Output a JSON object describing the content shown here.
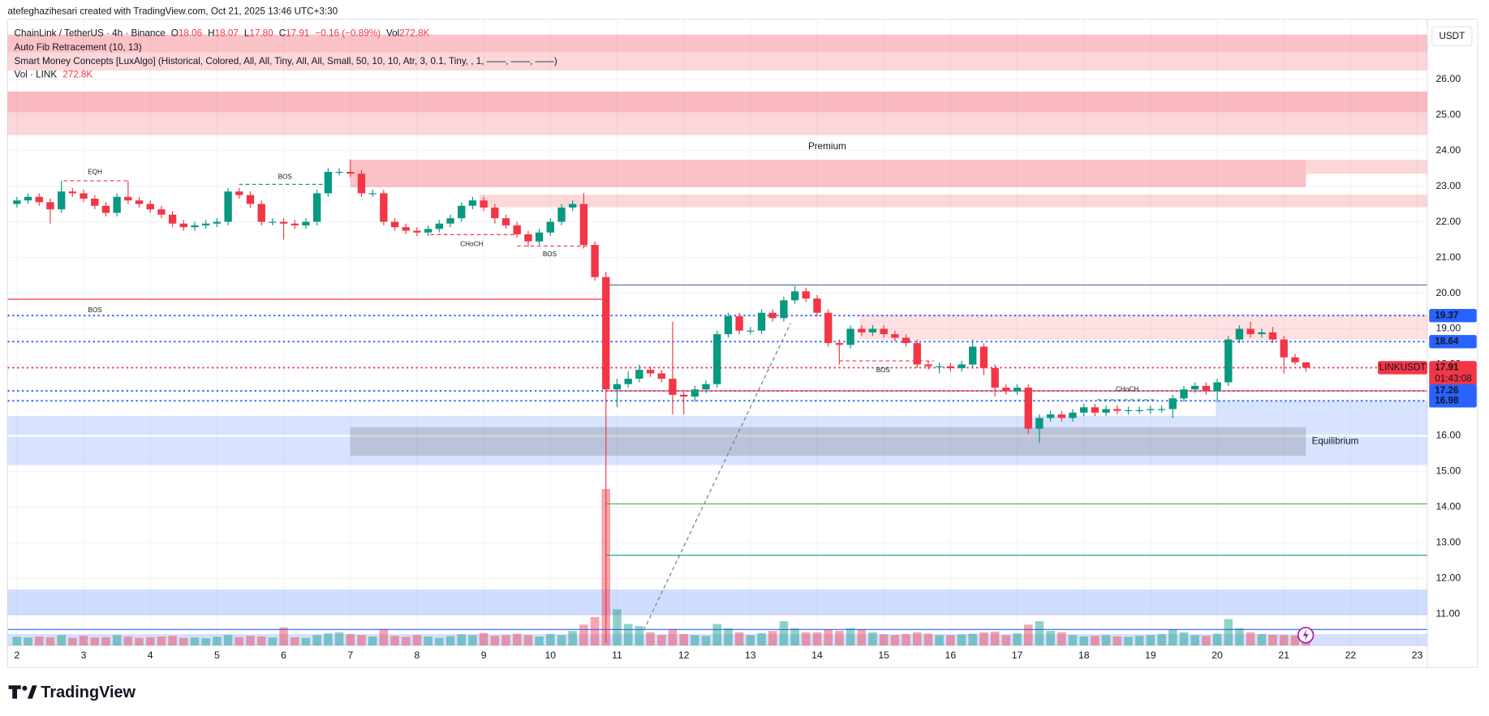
{
  "credit": "atefeghazihesari created with TradingView.com, Oct 21, 2025 13:46 UTC+3:30",
  "brand": "TradingView",
  "chart_data": {
    "type": "candlestick",
    "symbol": "ChainLink / TetherUS · 4h · Binance",
    "legend": [
      {
        "key": "O",
        "value": "18.06"
      },
      {
        "key": "H",
        "value": "18.07"
      },
      {
        "key": "L",
        "value": "17.80"
      },
      {
        "key": "C",
        "value": "17.91"
      },
      {
        "value": "−0.16 (−0.89%)"
      },
      {
        "key": "Vol",
        "value": "272.8K"
      }
    ],
    "indicators": [
      "Auto Fib Retracement (10, 13)",
      "Smart Money Concepts [LuxAlgo] (Historical, Colored, All, All, Tiny, All, All, Small, 50, 10, 10, Atr, 3, 0.1, Tiny, , 1, ——, ——, ——)"
    ],
    "volume_legend": {
      "name": "Vol · LINK",
      "value": "272.8K"
    },
    "currency": "USDT",
    "up_color": "#089981",
    "down_color": "#f23645",
    "x": [
      2,
      2.167,
      2.333,
      2.5,
      2.667,
      2.833,
      3,
      3.167,
      3.333,
      3.5,
      3.667,
      3.833,
      4,
      4.167,
      4.333,
      4.5,
      4.667,
      4.833,
      5,
      5.167,
      5.333,
      5.5,
      5.667,
      5.833,
      6,
      6.167,
      6.333,
      6.5,
      6.667,
      6.833,
      7,
      7.167,
      7.333,
      7.5,
      7.667,
      7.833,
      8,
      8.167,
      8.333,
      8.5,
      8.667,
      8.833,
      9,
      9.167,
      9.333,
      9.5,
      9.667,
      9.833,
      10,
      10.167,
      10.333,
      10.5,
      10.667,
      10.833,
      11,
      11.167,
      11.333,
      11.5,
      11.667,
      11.833,
      12,
      12.167,
      12.333,
      12.5,
      12.667,
      12.833,
      13,
      13.167,
      13.333,
      13.5,
      13.667,
      13.833,
      14,
      14.167,
      14.333,
      14.5,
      14.667,
      14.833,
      15,
      15.167,
      15.333,
      15.5,
      15.667,
      15.833,
      16,
      16.167,
      16.333,
      16.5,
      16.667,
      16.833,
      17,
      17.167,
      17.333,
      17.5,
      17.667,
      17.833,
      18,
      18.167,
      18.333,
      18.5,
      18.667,
      18.833,
      19,
      19.167,
      19.333,
      19.5,
      19.667,
      19.833,
      20,
      20.167,
      20.333,
      20.5,
      20.667,
      20.833,
      21,
      21.167,
      21.333
    ],
    "open": [
      22.5,
      22.6,
      22.7,
      22.55,
      22.35,
      22.85,
      22.8,
      22.65,
      22.45,
      22.25,
      22.7,
      22.6,
      22.5,
      22.35,
      22.2,
      21.95,
      21.85,
      21.9,
      21.95,
      22.0,
      22.85,
      22.75,
      22.5,
      22.0,
      22.0,
      21.95,
      21.9,
      22.0,
      22.8,
      23.4,
      23.4,
      23.35,
      22.8,
      22.8,
      22.0,
      21.85,
      21.75,
      21.7,
      21.8,
      21.95,
      22.1,
      22.45,
      22.6,
      22.4,
      22.1,
      21.9,
      21.65,
      21.45,
      21.7,
      22.0,
      22.4,
      22.5,
      21.35,
      20.45,
      17.3,
      17.45,
      17.6,
      17.85,
      17.75,
      17.6,
      17.15,
      17.1,
      17.3,
      17.45,
      18.85,
      19.35,
      18.95,
      18.95,
      19.45,
      19.3,
      19.8,
      20.05,
      19.85,
      19.45,
      18.6,
      18.55,
      19.0,
      18.9,
      19.0,
      18.85,
      18.75,
      18.6,
      18.0,
      17.95,
      17.95,
      17.9,
      18.0,
      18.5,
      17.9,
      17.35,
      17.25,
      17.35,
      16.2,
      16.5,
      16.6,
      16.5,
      16.65,
      16.8,
      16.65,
      16.75,
      16.7,
      16.72,
      16.72,
      16.75,
      16.75,
      17.05,
      17.3,
      17.4,
      17.25,
      17.5,
      18.7,
      19.0,
      18.85,
      18.9,
      18.7,
      18.2,
      18.06
    ],
    "high": [
      22.7,
      22.8,
      22.8,
      22.65,
      23.15,
      22.95,
      22.9,
      22.75,
      22.55,
      22.8,
      23.15,
      22.7,
      22.6,
      22.45,
      22.3,
      22.05,
      22.0,
      22.05,
      22.1,
      22.95,
      22.95,
      22.85,
      22.6,
      22.1,
      22.1,
      22.05,
      22.1,
      22.9,
      23.5,
      23.5,
      23.75,
      23.45,
      22.9,
      22.9,
      22.1,
      21.95,
      21.85,
      21.9,
      22.05,
      22.2,
      22.55,
      22.7,
      22.7,
      22.5,
      22.2,
      22.0,
      21.75,
      21.8,
      22.1,
      22.5,
      22.6,
      22.8,
      21.45,
      20.6,
      17.6,
      17.8,
      18.0,
      17.95,
      17.85,
      19.2,
      17.25,
      17.4,
      17.55,
      18.95,
      19.45,
      19.45,
      19.05,
      19.55,
      19.55,
      19.9,
      20.2,
      20.15,
      19.95,
      19.55,
      18.7,
      19.1,
      19.1,
      19.1,
      19.1,
      18.95,
      18.85,
      18.7,
      18.1,
      18.05,
      18.05,
      18.1,
      18.7,
      18.6,
      18.0,
      17.45,
      17.45,
      17.45,
      16.6,
      16.7,
      16.7,
      16.75,
      16.9,
      16.9,
      16.85,
      16.85,
      16.82,
      16.82,
      16.85,
      16.85,
      17.15,
      17.4,
      17.5,
      17.5,
      17.6,
      18.8,
      19.1,
      19.2,
      19.0,
      19.05,
      18.8,
      18.3,
      18.07
    ],
    "low": [
      22.4,
      22.5,
      22.45,
      21.95,
      22.25,
      22.7,
      22.55,
      22.35,
      22.15,
      22.15,
      22.5,
      22.4,
      22.25,
      22.1,
      21.85,
      21.75,
      21.75,
      21.8,
      21.85,
      21.9,
      22.65,
      22.4,
      21.9,
      21.9,
      21.5,
      21.8,
      21.8,
      21.9,
      22.7,
      23.3,
      23.25,
      22.7,
      22.7,
      21.9,
      21.75,
      21.65,
      21.6,
      21.6,
      21.7,
      21.85,
      22.0,
      22.35,
      22.3,
      21.95,
      21.8,
      21.55,
      21.3,
      21.35,
      21.6,
      21.9,
      22.3,
      21.25,
      20.35,
      10.2,
      16.8,
      17.35,
      17.5,
      17.65,
      17.5,
      16.6,
      16.6,
      16.95,
      17.2,
      17.35,
      18.75,
      18.85,
      18.85,
      18.85,
      19.2,
      19.2,
      19.7,
      19.75,
      19.35,
      18.5,
      18.0,
      18.45,
      18.8,
      18.8,
      18.75,
      18.65,
      18.5,
      17.9,
      17.85,
      17.75,
      17.8,
      17.8,
      17.9,
      17.7,
      17.1,
      17.15,
      17.15,
      16.05,
      15.8,
      16.4,
      16.4,
      16.4,
      16.55,
      16.55,
      16.55,
      16.6,
      16.6,
      16.62,
      16.62,
      16.65,
      16.5,
      16.95,
      17.2,
      17.15,
      16.95,
      17.4,
      18.6,
      18.75,
      18.75,
      18.6,
      17.75,
      18.0,
      17.8
    ],
    "close": [
      22.6,
      22.7,
      22.55,
      22.35,
      22.85,
      22.8,
      22.65,
      22.45,
      22.25,
      22.7,
      22.6,
      22.5,
      22.35,
      22.2,
      21.95,
      21.85,
      21.9,
      21.95,
      22.0,
      22.85,
      22.75,
      22.5,
      22.0,
      22.0,
      21.95,
      21.9,
      22.0,
      22.8,
      23.4,
      23.4,
      23.35,
      22.8,
      22.8,
      22.0,
      21.85,
      21.75,
      21.7,
      21.8,
      21.95,
      22.1,
      22.45,
      22.6,
      22.4,
      22.1,
      21.9,
      21.65,
      21.45,
      21.7,
      22.0,
      22.4,
      22.5,
      21.35,
      20.45,
      17.3,
      17.45,
      17.6,
      17.85,
      17.75,
      17.6,
      17.15,
      17.1,
      17.3,
      17.45,
      18.85,
      19.35,
      18.95,
      18.95,
      19.45,
      19.3,
      19.8,
      20.05,
      19.85,
      19.45,
      18.6,
      18.55,
      19.0,
      18.9,
      19.0,
      18.85,
      18.75,
      18.6,
      18.0,
      17.95,
      17.95,
      17.9,
      18.0,
      18.5,
      17.9,
      17.35,
      17.25,
      17.35,
      16.2,
      16.5,
      16.6,
      16.5,
      16.65,
      16.8,
      16.65,
      16.75,
      16.7,
      16.72,
      16.72,
      16.75,
      16.75,
      17.05,
      17.3,
      17.4,
      17.25,
      17.5,
      18.7,
      19.0,
      18.85,
      18.9,
      18.7,
      18.2,
      18.06,
      17.91
    ],
    "volume": [
      250,
      230,
      260,
      240,
      300,
      220,
      280,
      230,
      240,
      300,
      260,
      220,
      240,
      260,
      280,
      220,
      230,
      210,
      250,
      310,
      240,
      280,
      260,
      230,
      520,
      240,
      220,
      300,
      350,
      380,
      330,
      300,
      260,
      480,
      280,
      250,
      300,
      260,
      220,
      270,
      320,
      300,
      360,
      280,
      300,
      340,
      300,
      260,
      330,
      300,
      420,
      600,
      820,
      4500,
      1040,
      620,
      560,
      380,
      300,
      480,
      330,
      300,
      280,
      620,
      500,
      380,
      300,
      360,
      420,
      700,
      500,
      380,
      380,
      460,
      420,
      500,
      460,
      380,
      320,
      300,
      330,
      380,
      340,
      300,
      300,
      320,
      340,
      380,
      400,
      300,
      350,
      600,
      700,
      420,
      380,
      300,
      260,
      280,
      300,
      260,
      250,
      280,
      300,
      330,
      460,
      380,
      300,
      280,
      340,
      760,
      500,
      380,
      330,
      310,
      300,
      290,
      272.8
    ],
    "xlim": [
      1.86,
      23.15
    ],
    "ylim": [
      10.12,
      27.68
    ],
    "xticks": [
      2,
      3,
      4,
      5,
      6,
      7,
      8,
      9,
      10,
      11,
      12,
      13,
      14,
      15,
      16,
      17,
      18,
      19,
      20,
      21,
      22,
      23
    ],
    "yticks": [
      {
        "value": 11,
        "label": "11.00"
      },
      {
        "value": 12,
        "label": "12.00"
      },
      {
        "value": 13,
        "label": "13.00"
      },
      {
        "value": 14,
        "label": "14.00"
      },
      {
        "value": 15,
        "label": "15.00"
      },
      {
        "value": 16,
        "label": "16.00"
      },
      {
        "value": 17,
        "label": "17.00"
      },
      {
        "value": 18,
        "label": "18.00"
      },
      {
        "value": 19,
        "label": "19.00"
      },
      {
        "value": 20,
        "label": "20.00"
      },
      {
        "value": 21,
        "label": "21.00"
      },
      {
        "value": 22,
        "label": "22.00"
      },
      {
        "value": 23,
        "label": "23.00"
      },
      {
        "value": 24,
        "label": "24.00"
      },
      {
        "value": 25,
        "label": "25.00"
      },
      {
        "value": 26,
        "label": "26.00"
      }
    ],
    "grid": true,
    "zones": [
      {
        "from": 1.86,
        "to": 23.15,
        "low": 26.75,
        "high": 27.25,
        "color": "rgba(242,54,69,0.3)"
      },
      {
        "from": 1.86,
        "to": 23.15,
        "low": 26.24,
        "high": 26.75,
        "color": "rgba(242,54,69,0.2)"
      },
      {
        "from": 1.86,
        "to": 23.15,
        "low": 25.07,
        "high": 25.65,
        "color": "rgba(242,54,69,0.35)"
      },
      {
        "from": 1.86,
        "to": 23.15,
        "low": 24.43,
        "high": 25.07,
        "color": "rgba(242,54,69,0.2)"
      },
      {
        "from": 7.0,
        "to": 21.33,
        "low": 22.97,
        "high": 23.74,
        "color": "rgba(242,54,69,0.3)"
      },
      {
        "from": 21.33,
        "to": 23.15,
        "low": 23.35,
        "high": 23.74,
        "color": "rgba(242,54,69,0.2)"
      },
      {
        "from": 8.94,
        "to": 23.15,
        "low": 22.41,
        "high": 22.76,
        "color": "rgba(242,54,69,0.2)"
      },
      {
        "from": 14.64,
        "to": 23.15,
        "low": 18.69,
        "high": 19.4,
        "color": "rgba(242,54,69,0.15)"
      },
      {
        "from": 1.86,
        "to": 23.15,
        "low": 16.03,
        "high": 16.56,
        "color": "rgba(41,98,255,0.18)"
      },
      {
        "from": 1.86,
        "to": 23.15,
        "low": 15.18,
        "high": 15.97,
        "color": "rgba(41,98,255,0.18)"
      },
      {
        "from": 7.0,
        "to": 21.33,
        "low": 15.44,
        "high": 16.24,
        "color": "rgba(120,123,134,0.3)"
      },
      {
        "from": 19.98,
        "to": 23.15,
        "low": 16.56,
        "high": 16.98,
        "color": "rgba(41,98,255,0.18)"
      },
      {
        "from": 1.86,
        "to": 23.15,
        "low": 10.97,
        "high": 11.69,
        "color": "rgba(41,98,255,0.22)"
      },
      {
        "from": 1.86,
        "to": 23.15,
        "low": 10.12,
        "high": 10.44,
        "color": "rgba(41,98,255,0.2)"
      }
    ],
    "lines": [
      {
        "price": 20.23,
        "from": 10.83,
        "to": 23.15,
        "color": "#5d6a9a",
        "style": "solid"
      },
      {
        "price": 19.83,
        "from": 1.86,
        "to": 10.83,
        "color": "#f23645",
        "style": "solid"
      },
      {
        "price": 19.37,
        "from": 1.86,
        "to": 23.15,
        "color": "#2962ff",
        "style": "dotted"
      },
      {
        "price": 18.64,
        "from": 1.86,
        "to": 23.15,
        "color": "#2962ff",
        "style": "dotted"
      },
      {
        "price": 17.91,
        "from": 1.86,
        "to": 23.15,
        "color": "#f23645",
        "style": "dotted"
      },
      {
        "price": 17.26,
        "from": 1.86,
        "to": 23.15,
        "color": "#2962ff",
        "style": "dotted"
      },
      {
        "price": 16.98,
        "from": 1.86,
        "to": 23.15,
        "color": "#2962ff",
        "style": "dotted"
      },
      {
        "price": 17.26,
        "from": 10.83,
        "to": 23.15,
        "color": "#f23645",
        "style": "solid"
      },
      {
        "price": 14.09,
        "from": 10.83,
        "to": 23.15,
        "color": "#4caf50",
        "style": "solid"
      },
      {
        "price": 12.65,
        "from": 10.83,
        "to": 23.15,
        "color": "#089981",
        "style": "solid"
      },
      {
        "price": 10.57,
        "from": 1.86,
        "to": 23.15,
        "color": "#2962ff",
        "style": "solid"
      },
      {
        "price": 23.15,
        "from": 2.7,
        "to": 3.67,
        "color": "#f23645",
        "style": "dashed"
      },
      {
        "price": 23.05,
        "from": 5.33,
        "to": 6.7,
        "color": "#089981",
        "style": "dashed"
      },
      {
        "price": 21.64,
        "from": 8.2,
        "to": 9.5,
        "color": "#f23645",
        "style": "dashed"
      },
      {
        "price": 21.32,
        "from": 9.5,
        "to": 10.6,
        "color": "#f23645",
        "style": "dashed"
      },
      {
        "price": 18.1,
        "from": 14.33,
        "to": 15.75,
        "color": "#f23645",
        "style": "dashed"
      },
      {
        "price": 17.01,
        "from": 18.2,
        "to": 19.1,
        "color": "#089981",
        "style": "dashed"
      }
    ],
    "trend_line": {
      "from": [
        11.4,
        10.55
      ],
      "to": [
        13.6,
        19.15
      ],
      "color": "#787b86"
    },
    "annotations": [
      {
        "text": "EQH",
        "x": 3.17,
        "y": 23.39,
        "color": "#f23645"
      },
      {
        "text": "BOS",
        "x": 6.02,
        "y": 23.26,
        "color": "#089981"
      },
      {
        "text": "CHoCH",
        "x": 8.82,
        "y": 21.37,
        "color": "#f23645"
      },
      {
        "text": "BOS",
        "x": 9.99,
        "y": 21.08,
        "color": "#f23645"
      },
      {
        "text": "BOS",
        "x": 3.17,
        "y": 19.51,
        "color": "#f23645"
      },
      {
        "text": "Premium",
        "x": 14.15,
        "y": 24.11,
        "color": "#f23645"
      },
      {
        "text": "BOS",
        "x": 14.99,
        "y": 17.83,
        "color": "#f23645"
      },
      {
        "text": "CHoCH",
        "x": 18.65,
        "y": 17.3,
        "color": "#089981"
      },
      {
        "text": "Equilibrium",
        "x": 21.77,
        "y": 15.84,
        "color": "#9598a1"
      }
    ],
    "price_labels": [
      {
        "value": 19.37,
        "label": "19.37",
        "color": "#2962ff"
      },
      {
        "value": 18.64,
        "label": "18.64",
        "color": "#2962ff"
      },
      {
        "value": 17.91,
        "label": "17.91",
        "color": "#f23645",
        "symbol": "LINKUSDT",
        "countdown": "01:43:08"
      },
      {
        "value": 17.26,
        "label": "17.26",
        "color": "#2962ff"
      },
      {
        "value": 16.98,
        "label": "16.98",
        "color": "#2962ff"
      }
    ]
  }
}
